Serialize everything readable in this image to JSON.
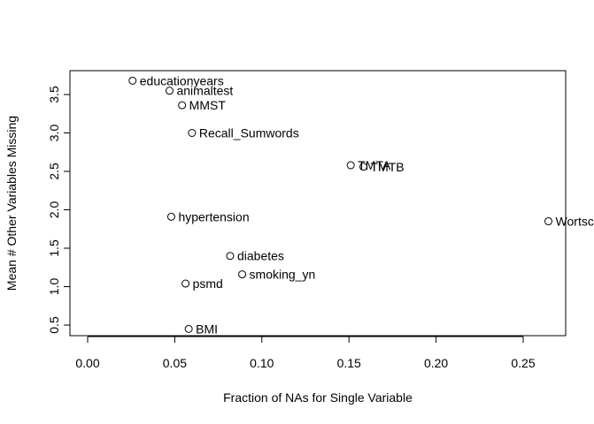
{
  "chart_data": {
    "type": "scatter",
    "title": "",
    "xlabel": "Fraction of NAs for Single Variable",
    "ylabel": "Mean # Other Variables Missing",
    "xlim": [
      0.0,
      0.27
    ],
    "ylim": [
      0.35,
      3.75
    ],
    "xticks": [
      0.0,
      0.05,
      0.1,
      0.15,
      0.2,
      0.25
    ],
    "xtick_labels": [
      "0.00",
      "0.05",
      "0.10",
      "0.15",
      "0.20",
      "0.25"
    ],
    "yticks": [
      0.5,
      1.0,
      1.5,
      2.0,
      2.5,
      3.0,
      3.5
    ],
    "ytick_labels": [
      "0.5",
      "1.0",
      "1.5",
      "2.0",
      "2.5",
      "3.0",
      "3.5"
    ],
    "grid": false,
    "legend": "none",
    "points": [
      {
        "label": "educationyears",
        "x": 0.0258,
        "y": 3.68
      },
      {
        "label": "animaltest",
        "x": 0.047,
        "y": 3.55
      },
      {
        "label": "MMST",
        "x": 0.0542,
        "y": 3.36
      },
      {
        "label": "Recall_Sumwords",
        "x": 0.0599,
        "y": 3.0
      },
      {
        "label": "TMTA",
        "x": 0.151,
        "y": 2.58
      },
      {
        "label": "TMTB",
        "x": 0.1583,
        "y": 2.56
      },
      {
        "label": "Wortschatz",
        "x": 0.2645,
        "y": 1.85
      },
      {
        "label": "hypertension",
        "x": 0.048,
        "y": 1.91
      },
      {
        "label": "diabetes",
        "x": 0.0818,
        "y": 1.4
      },
      {
        "label": "smoking_yn",
        "x": 0.0887,
        "y": 1.16
      },
      {
        "label": "psmd",
        "x": 0.0562,
        "y": 1.04
      },
      {
        "label": "BMI",
        "x": 0.058,
        "y": 0.45
      }
    ]
  }
}
